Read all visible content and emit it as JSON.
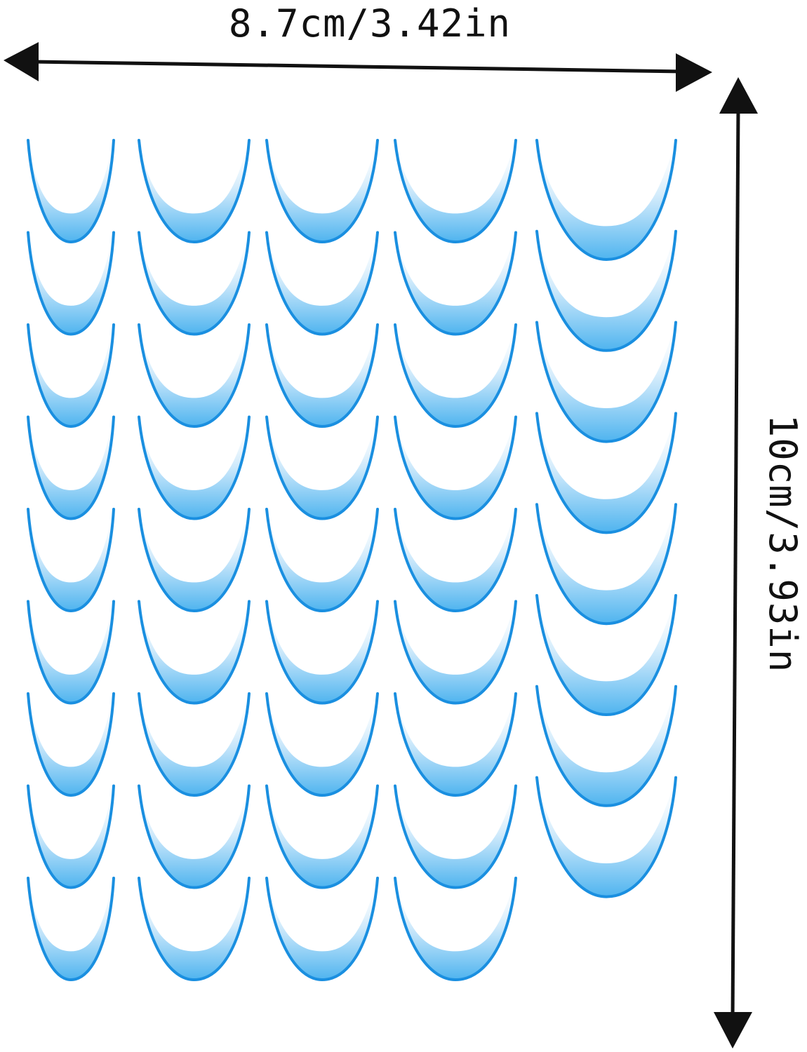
{
  "width_label": "8.7cm/3.42in",
  "height_label": "10cm/3.93in",
  "colors": {
    "arrow": "#111111",
    "tip_stroke": "#1a8fe0",
    "tip_fill_light": "#ffffff",
    "tip_fill_dark": "#4fb4ef"
  },
  "sheet": {
    "columns": 5,
    "rows_per_column": [
      9,
      9,
      9,
      9,
      8
    ],
    "total_tips": 44,
    "tip_shape": "french-manicure-smile-line",
    "icon": "nail-tip-icon"
  }
}
